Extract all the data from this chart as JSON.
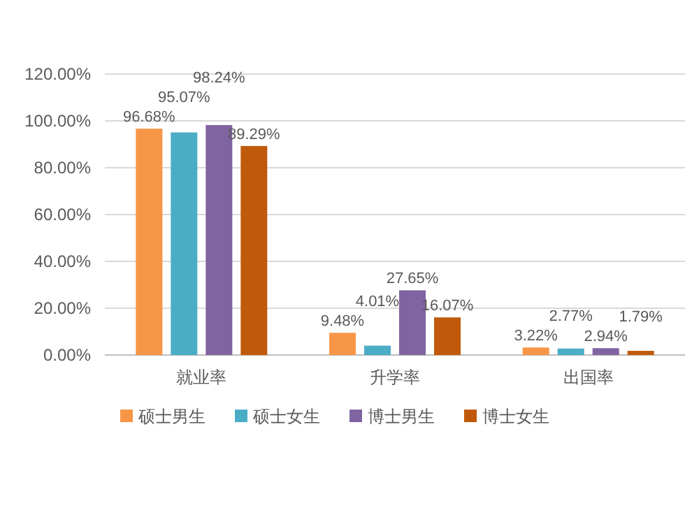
{
  "chart_data": {
    "type": "bar",
    "categories": [
      "就业率",
      "升学率",
      "出国率"
    ],
    "series": [
      {
        "name": "硕士男生",
        "color": "#f79646",
        "values": [
          96.68,
          9.48,
          3.22
        ],
        "value_labels": [
          "96.68%",
          "9.48%",
          "3.22%"
        ]
      },
      {
        "name": "硕士女生",
        "color": "#4bacc6",
        "values": [
          95.07,
          4.01,
          2.77
        ],
        "value_labels": [
          "95.07%",
          "4.01%",
          "2.77%"
        ]
      },
      {
        "name": "博士男生",
        "color": "#8064a2",
        "values": [
          98.24,
          27.65,
          2.94
        ],
        "value_labels": [
          "98.24%",
          "27.65%",
          "2.94%"
        ]
      },
      {
        "name": "博士女生",
        "color": "#c0590b",
        "values": [
          89.29,
          16.07,
          1.79
        ],
        "value_labels": [
          "89.29%",
          "16.07%",
          "1.79%"
        ]
      }
    ],
    "ylim": [
      0,
      120
    ],
    "yticks": [
      {
        "value": 0,
        "label": "0.00%"
      },
      {
        "value": 20,
        "label": "20.00%"
      },
      {
        "value": 40,
        "label": "40.00%"
      },
      {
        "value": 60,
        "label": "60.00%"
      },
      {
        "value": 80,
        "label": "80.00%"
      },
      {
        "value": 100,
        "label": "100.00%"
      },
      {
        "value": 120,
        "label": "120.00%"
      }
    ],
    "grid": "y",
    "legend": "bottom"
  }
}
